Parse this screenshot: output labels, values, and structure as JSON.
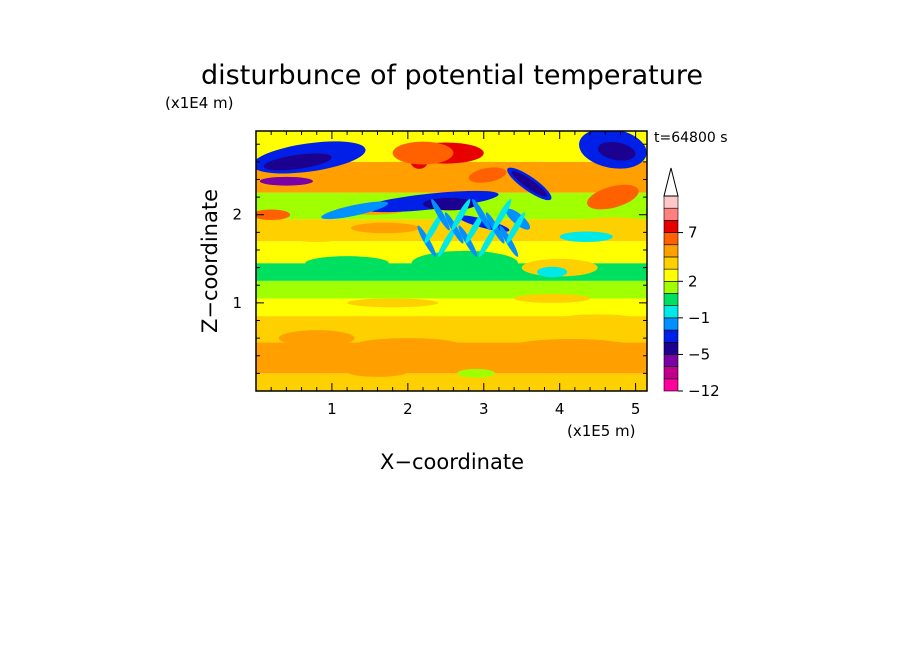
{
  "chart_data": {
    "type": "heatmap",
    "title": "disturbunce of potential temperature",
    "time_label": "t=64800 s",
    "xlabel": "X−coordinate",
    "ylabel": "Z−coordinate",
    "x_unit": "(x1E5 m)",
    "y_unit": "(x1E4 m)",
    "xlim": [
      0,
      5.15
    ],
    "ylim": [
      0,
      2.95
    ],
    "x_ticks": [
      1,
      2,
      3,
      4,
      5
    ],
    "x_tick_labels": [
      "1",
      "2",
      "3",
      "4",
      "5"
    ],
    "y_ticks": [
      1,
      2
    ],
    "y_tick_labels": [
      "1",
      "2"
    ],
    "colorbar": {
      "colors": [
        "#ff00a0",
        "#c0008a",
        "#7a00a8",
        "#1c0090",
        "#0020e8",
        "#0090ff",
        "#00e8e8",
        "#00e060",
        "#a0ff00",
        "#ffff00",
        "#ffd000",
        "#ffa000",
        "#ff6000",
        "#e80000",
        "#ff8080",
        "#ffc8c8"
      ],
      "tick_labels": [
        "−12",
        "−5",
        "−1",
        "2",
        "7"
      ],
      "extend": "max"
    },
    "field_description": "Values: grid of colour-class indices by height band, shown as filled contours",
    "bands": [
      {
        "z": [
          0.0,
          0.2
        ],
        "level": 10
      },
      {
        "z": [
          0.2,
          0.55
        ],
        "level": 11
      },
      {
        "z": [
          0.55,
          0.85
        ],
        "level": 10
      },
      {
        "z": [
          0.85,
          1.05
        ],
        "level": 9
      },
      {
        "z": [
          1.05,
          1.25
        ],
        "level": 8
      },
      {
        "z": [
          1.25,
          1.45
        ],
        "level": 7
      },
      {
        "z": [
          1.45,
          1.7
        ],
        "level": 9
      },
      {
        "z": [
          1.7,
          1.95
        ],
        "level": 10
      },
      {
        "z": [
          1.95,
          2.25
        ],
        "level": 8
      },
      {
        "z": [
          2.25,
          2.6
        ],
        "level": 11
      },
      {
        "z": [
          2.6,
          2.95
        ],
        "level": 9
      }
    ]
  }
}
